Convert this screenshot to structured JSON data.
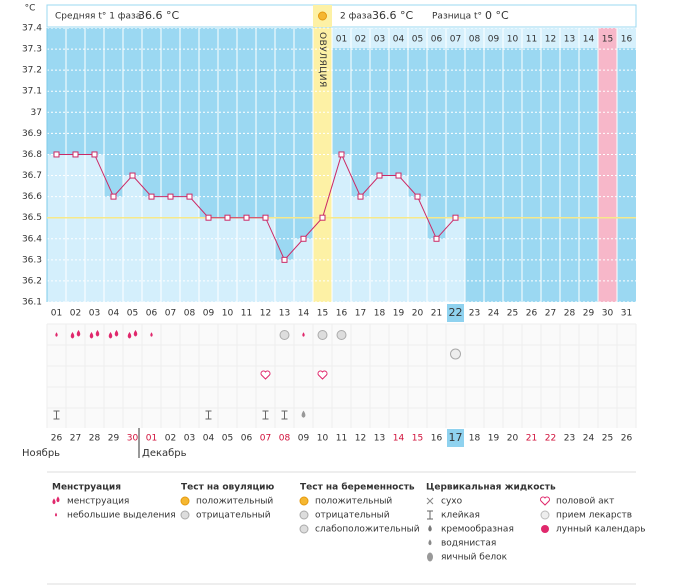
{
  "chart_data": {
    "type": "line",
    "y_label": "°C",
    "phase1_label": "Средняя t° 1 фаза",
    "phase1_avg": "36.6 °C",
    "phase2_label": "2 фаза",
    "phase2_avg": "36.6 °C",
    "diff_label": "Разница t°",
    "diff": "0 °C",
    "ovulation_label": "ОВУЛЯЦИЯ",
    "ovulation_day": 15,
    "highlight_day": 30,
    "today_index": 21,
    "coverline": 36.5,
    "categories": [
      "01",
      "02",
      "03",
      "04",
      "05",
      "06",
      "07",
      "08",
      "09",
      "10",
      "11",
      "12",
      "13",
      "14",
      "15",
      "16",
      "17",
      "18",
      "19",
      "20",
      "21",
      "22",
      "23",
      "24",
      "25",
      "26",
      "27",
      "28",
      "29",
      "30",
      "31"
    ],
    "phase2_days": [
      "01",
      "02",
      "03",
      "04",
      "05",
      "06",
      "07",
      "08",
      "09",
      "10",
      "11",
      "12",
      "13",
      "14",
      "15",
      "16"
    ],
    "values": [
      36.8,
      36.8,
      36.8,
      36.6,
      36.7,
      36.6,
      36.6,
      36.6,
      36.5,
      36.5,
      36.5,
      36.5,
      36.3,
      36.4,
      36.5,
      36.8,
      36.6,
      36.7,
      36.7,
      36.6,
      36.4,
      36.5,
      null,
      null,
      null,
      null,
      null,
      null,
      null,
      null,
      null
    ],
    "ylim": [
      36.1,
      37.4
    ],
    "yticks": [
      36.1,
      36.2,
      36.3,
      36.4,
      36.5,
      36.6,
      36.7,
      36.8,
      36.9,
      37,
      37.1,
      37.2,
      37.3,
      37.4
    ],
    "line_color": "#cc2a66",
    "dates": [
      "26",
      "27",
      "28",
      "29",
      "30",
      "01",
      "02",
      "03",
      "04",
      "05",
      "06",
      "07",
      "08",
      "09",
      "10",
      "11",
      "12",
      "13",
      "14",
      "15",
      "16",
      "17",
      "18",
      "19",
      "20",
      "21",
      "22",
      "23",
      "24",
      "25",
      "26"
    ],
    "red_dates": [
      4,
      5,
      11,
      12,
      18,
      19,
      25,
      26
    ],
    "months": [
      "Ноябрь",
      "Декабрь"
    ],
    "markers": {
      "menstruation": [
        2,
        3,
        4,
        5
      ],
      "spotting": [
        1,
        6,
        14
      ],
      "ovulation_negative": [
        13,
        15,
        16
      ],
      "pregnancy_negative": [
        22
      ],
      "sex": [
        12,
        15
      ],
      "sticky": [
        1,
        9,
        12,
        13
      ],
      "watery": [
        14
      ]
    },
    "legend": [
      {
        "title": "Менструация",
        "items": [
          "менструация",
          "небольшие выделения"
        ]
      },
      {
        "title": "Тест на овуляцию",
        "items": [
          "положительный",
          "отрицательный"
        ]
      },
      {
        "title": "Тест на беременность",
        "items": [
          "положительный",
          "отрицательный",
          "слабоположительный"
        ]
      },
      {
        "title": "Цервикальная жидкость",
        "items": [
          "сухо",
          "клейкая",
          "кремообразная",
          "водянистая",
          "яичный белок"
        ]
      },
      {
        "items": [
          "половой акт",
          "прием лекарств",
          "лунный календарь"
        ]
      }
    ]
  }
}
